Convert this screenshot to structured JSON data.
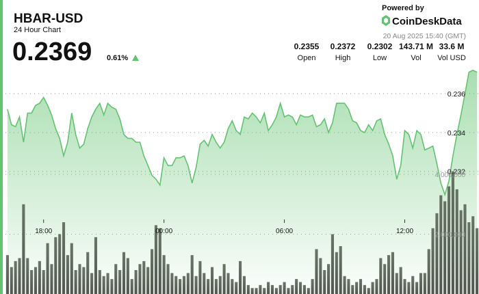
{
  "header": {
    "symbol": "HBAR-USD",
    "subtitle": "24 Hour Chart",
    "price": "0.2369",
    "change": "0.61%",
    "stats": [
      {
        "value": "0.2355",
        "label": "Open"
      },
      {
        "value": "0.2372",
        "label": "High"
      },
      {
        "value": "0.2302",
        "label": "Low"
      },
      {
        "value": "143.71 M",
        "label": "Vol"
      },
      {
        "value": "33.6 M",
        "label": "Vol USD"
      }
    ],
    "powered_by": "Powered by",
    "brand": "CoinDeskData",
    "timestamp": "20 Aug 2025 15:40 (GMT)"
  },
  "chart_data": {
    "type": "area",
    "x": [
      16.2,
      16.4,
      16.6,
      16.8,
      17,
      17.2,
      17.4,
      17.6,
      17.8,
      18,
      18.2,
      18.4,
      18.6,
      18.8,
      19,
      19.2,
      19.4,
      19.6,
      19.8,
      20,
      20.2,
      20.4,
      20.6,
      20.8,
      21,
      21.2,
      21.4,
      21.6,
      21.8,
      22,
      22.2,
      22.4,
      22.6,
      22.8,
      23,
      23.2,
      23.4,
      23.6,
      23.8,
      24,
      24.2,
      24.4,
      24.6,
      24.8,
      25,
      25.2,
      25.4,
      25.6,
      25.8,
      26,
      26.2,
      26.4,
      26.6,
      26.8,
      27,
      27.2,
      27.4,
      27.6,
      27.8,
      28,
      28.2,
      28.4,
      28.6,
      28.8,
      29,
      29.2,
      29.4,
      29.6,
      29.8,
      30,
      30.2,
      30.4,
      30.6,
      30.8,
      31,
      31.2,
      31.4,
      31.6,
      31.8,
      32,
      32.2,
      32.4,
      32.6,
      32.8,
      33,
      33.2,
      33.4,
      33.6,
      33.8,
      34,
      34.2,
      34.4,
      34.6,
      34.8,
      35,
      35.2,
      35.4,
      35.6,
      35.8,
      36,
      36.2,
      36.4,
      36.6,
      36.8,
      37,
      37.2,
      37.4,
      37.6,
      37.8,
      38,
      38.2,
      38.4,
      38.6,
      38.8,
      39,
      39.2,
      39.4,
      39.6
    ],
    "series": [
      {
        "color": "#62c370",
        "values": [
          0.2352,
          0.2344,
          0.2343,
          0.2348,
          0.2335,
          0.235,
          0.235,
          0.2354,
          0.2355,
          0.2358,
          0.2354,
          0.2349,
          0.2342,
          0.2337,
          0.2328,
          0.2335,
          0.235,
          0.2339,
          0.2332,
          0.2334,
          0.2342,
          0.2348,
          0.2352,
          0.2355,
          0.2349,
          0.2355,
          0.2353,
          0.2352,
          0.2347,
          0.2339,
          0.2337,
          0.2337,
          0.2335,
          0.2335,
          0.2328,
          0.2323,
          0.2318,
          0.2316,
          0.2313,
          0.2327,
          0.2323,
          0.2323,
          0.2327,
          0.2327,
          0.2328,
          0.2323,
          0.2314,
          0.2322,
          0.2334,
          0.2336,
          0.2333,
          0.2339,
          0.2335,
          0.2332,
          0.2335,
          0.2342,
          0.2346,
          0.2341,
          0.2339,
          0.2348,
          0.2347,
          0.235,
          0.2348,
          0.2345,
          0.235,
          0.2341,
          0.2344,
          0.2348,
          0.2355,
          0.2348,
          0.2349,
          0.2348,
          0.2344,
          0.2349,
          0.2348,
          0.2348,
          0.2349,
          0.2343,
          0.2344,
          0.2347,
          0.234,
          0.2345,
          0.2355,
          0.2355,
          0.2355,
          0.2352,
          0.2346,
          0.2345,
          0.2341,
          0.234,
          0.2344,
          0.2341,
          0.2346,
          0.2347,
          0.2339,
          0.2334,
          0.2328,
          0.2316,
          0.2323,
          0.2341,
          0.2339,
          0.2332,
          0.2341,
          0.2339,
          0.2331,
          0.2332,
          0.2333,
          0.2324,
          0.2314,
          0.2308,
          0.2315,
          0.2328,
          0.2339,
          0.2349,
          0.236,
          0.2371,
          0.2372,
          0.2371
        ]
      },
      {
        "color": "#4f5a4c",
        "axis": "y2",
        "type": "bar",
        "values": [
          1300000,
          900000,
          1100000,
          1200000,
          3000000,
          1200000,
          800000,
          900000,
          1100000,
          800000,
          1700000,
          1000000,
          1900000,
          2000000,
          2400000,
          1300000,
          1700000,
          800000,
          1000000,
          900000,
          1400000,
          700000,
          1900000,
          800000,
          600000,
          700000,
          500000,
          1000000,
          800000,
          1400000,
          1200000,
          500000,
          800000,
          1000000,
          1100000,
          900000,
          1500000,
          2300000,
          2200000,
          1300000,
          1000000,
          700000,
          600000,
          500000,
          600000,
          700000,
          1300000,
          600000,
          1100000,
          700000,
          500000,
          900000,
          500000,
          600000,
          1000000,
          700000,
          500000,
          400000,
          1100000,
          600000,
          300000,
          200000,
          200000,
          300000,
          200000,
          400000,
          300000,
          200000,
          300000,
          400000,
          200000,
          300000,
          500000,
          400000,
          300000,
          200000,
          500000,
          1500000,
          1200000,
          800000,
          1000000,
          2000000,
          1400000,
          1600000,
          600000,
          500000,
          300000,
          400000,
          500000,
          300000,
          200000,
          400000,
          500000,
          1200000,
          1000000,
          1300000,
          1400000,
          700000,
          900000,
          500000,
          400000,
          600000,
          400000,
          700000,
          700000,
          1500000,
          2200000,
          2700000,
          3300000,
          3100000,
          3600000,
          4100000,
          3500000,
          2800000,
          3000000,
          2400000,
          2600000,
          2200000
        ]
      }
    ],
    "xlim": [
      16.1,
      39.7
    ],
    "xticks": [
      {
        "value": 18,
        "label": "18:00"
      },
      {
        "value": 24,
        "label": "00:00"
      },
      {
        "value": 30,
        "label": "06:00"
      },
      {
        "value": 36,
        "label": "12:00"
      }
    ],
    "ylim": [
      0.2257,
      0.238
    ],
    "yticks": [
      0.232,
      0.234,
      0.236
    ],
    "y2lim": [
      0,
      8000000
    ],
    "y2ticks": [
      {
        "value": 2000000,
        "label": "2,000,000"
      },
      {
        "value": 4000000,
        "label": "4,000,000"
      }
    ],
    "grid": true
  }
}
